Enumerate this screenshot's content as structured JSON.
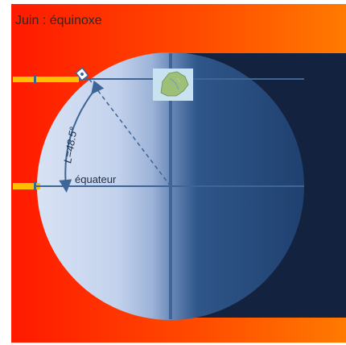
{
  "title": "Juin : équinoxe",
  "angle_label": "L=48.5°",
  "equator_label": "équateur",
  "latitude_deg": 48.5,
  "icons": {
    "map": "france-map-icon",
    "observer": "observer-icon"
  },
  "colors": {
    "background_left": "#ff1a00",
    "background_right": "#ff7a00",
    "night": "#13233f",
    "earth_day": "#d7e1f3",
    "earth_night": "#1f4170",
    "sun_ray": "#ffc000",
    "axis": "#3d6696",
    "title": "#2a2a2a"
  }
}
